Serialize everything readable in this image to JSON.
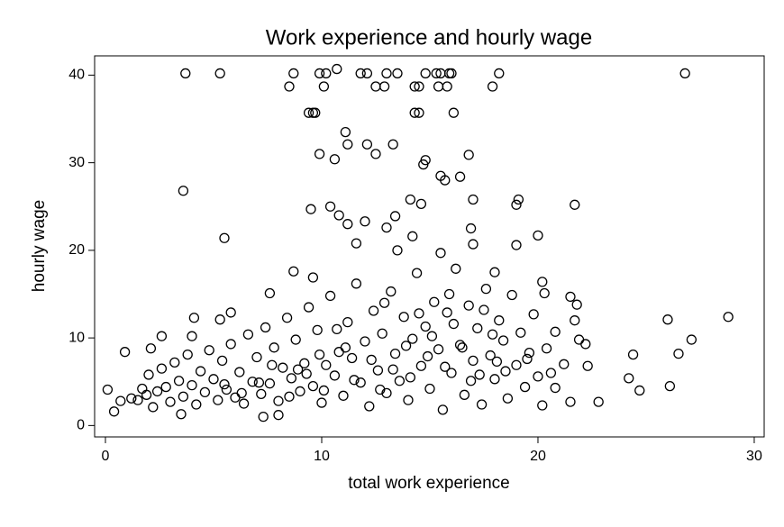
{
  "chart_data": {
    "type": "scatter",
    "title": "Work experience and hourly wage",
    "x_label": "total work experience",
    "y_label": "hourly wage",
    "xlim": [
      -0.5,
      30.46
    ],
    "ylim": [
      -1.3,
      42.2
    ],
    "xticks": [
      0,
      10,
      20,
      30
    ],
    "yticks": [
      0,
      10,
      20,
      30,
      40
    ],
    "color": "#000000",
    "x": [
      3.7,
      5.3,
      8.7,
      9.9,
      10.2,
      10.7,
      11.8,
      12.1,
      13.0,
      13.5,
      14.8,
      15.3,
      15.5,
      15.9,
      16.0,
      18.2,
      26.8,
      8.5,
      10.1,
      12.5,
      12.9,
      14.3,
      14.5,
      15.4,
      15.8,
      17.9,
      9.4,
      9.6,
      9.7,
      14.3,
      14.5,
      16.1,
      11.1,
      11.2,
      12.1,
      13.3,
      9.9,
      10.6,
      12.5,
      14.8,
      14.7,
      15.5,
      15.7,
      16.4,
      16.8,
      3.6,
      5.5,
      9.5,
      10.4,
      10.8,
      11.2,
      12.0,
      13.0,
      13.4,
      14.1,
      14.6,
      17.0,
      16.9,
      17.0,
      19.0,
      19.1,
      19.0,
      20.0,
      21.7,
      13.5,
      14.2,
      15.5,
      11.6,
      8.7,
      9.6,
      7.6,
      18.0,
      20.2,
      24.2,
      24.4,
      24.7,
      26.0,
      26.1,
      26.5,
      27.1,
      28.8,
      22.8,
      22.3,
      22.2,
      21.9,
      21.7,
      21.8,
      21.5,
      21.5,
      20.8,
      20.6,
      20.3,
      20.2,
      0.1,
      0.4,
      0.7,
      0.9,
      2.1,
      2.6,
      3.5,
      4.0,
      4.1,
      5.3,
      5.8,
      7.3,
      8.0,
      1.2,
      1.5,
      1.7,
      1.9,
      2.0,
      2.2,
      2.4,
      2.6,
      2.8,
      3.0,
      3.2,
      3.4,
      3.6,
      3.8,
      4.0,
      4.2,
      4.4,
      4.6,
      4.8,
      5.0,
      5.2,
      5.4,
      5.6,
      5.8,
      6.0,
      6.2,
      6.4,
      6.6,
      6.8,
      7.0,
      7.2,
      7.4,
      7.6,
      7.8,
      8.0,
      8.2,
      8.4,
      8.6,
      8.8,
      9.0,
      9.2,
      9.4,
      9.6,
      9.8,
      10.0,
      10.2,
      10.4,
      10.6,
      10.8,
      11.0,
      11.2,
      11.4,
      11.6,
      11.8,
      12.0,
      12.2,
      12.4,
      12.6,
      12.8,
      13.0,
      13.2,
      13.4,
      13.6,
      13.8,
      14.0,
      14.2,
      14.4,
      14.6,
      14.8,
      15.0,
      15.2,
      15.4,
      15.6,
      15.8,
      16.0,
      16.2,
      16.4,
      16.6,
      16.8,
      17.0,
      17.2,
      17.4,
      17.6,
      17.8,
      18.0,
      18.2,
      18.4,
      18.6,
      18.8,
      19.0,
      19.2,
      19.4,
      19.6,
      19.8,
      20.0,
      20.4,
      20.8,
      21.2,
      11.5,
      12.7,
      13.3,
      14.1,
      14.9,
      15.7,
      16.5,
      17.3,
      18.1,
      9.3,
      10.1,
      8.5,
      7.1,
      6.3,
      5.5,
      13.9,
      15.1,
      16.1,
      17.9,
      12.3,
      11.1,
      10.7,
      14.5,
      16.9,
      18.5,
      19.5,
      9.9,
      8.9,
      7.7,
      12.9,
      15.9,
      17.5
    ],
    "values": [
      40.2,
      40.2,
      40.2,
      40.2,
      40.2,
      40.7,
      40.2,
      40.2,
      40.2,
      40.2,
      40.2,
      40.2,
      40.2,
      40.2,
      40.2,
      40.2,
      40.2,
      38.7,
      38.7,
      38.7,
      38.7,
      38.7,
      38.7,
      38.7,
      38.7,
      38.7,
      35.7,
      35.7,
      35.7,
      35.7,
      35.7,
      35.7,
      33.5,
      32.1,
      32.1,
      32.1,
      31.0,
      30.4,
      31.0,
      30.3,
      29.8,
      28.5,
      28.0,
      28.4,
      30.9,
      26.8,
      21.4,
      24.7,
      25.0,
      24.0,
      23.0,
      23.3,
      22.6,
      23.9,
      25.8,
      25.3,
      25.8,
      22.5,
      20.7,
      25.2,
      25.8,
      20.6,
      21.7,
      25.2,
      20.0,
      21.6,
      19.7,
      20.8,
      17.6,
      16.9,
      15.1,
      17.5,
      16.4,
      5.4,
      8.1,
      4.0,
      12.1,
      4.5,
      8.2,
      9.8,
      12.4,
      2.7,
      6.8,
      9.3,
      9.8,
      12.0,
      13.8,
      14.7,
      2.7,
      10.7,
      6.0,
      15.1,
      2.3,
      4.1,
      1.6,
      2.8,
      8.4,
      8.8,
      10.2,
      1.3,
      10.2,
      12.3,
      12.1,
      12.9,
      1.0,
      1.2,
      3.1,
      2.9,
      4.2,
      3.5,
      5.8,
      2.1,
      3.9,
      6.5,
      4.4,
      2.7,
      7.2,
      5.1,
      3.3,
      8.1,
      4.6,
      2.4,
      6.2,
      3.8,
      8.6,
      5.3,
      2.9,
      7.4,
      4.1,
      9.3,
      3.2,
      6.1,
      2.5,
      10.4,
      5.0,
      7.8,
      3.6,
      11.2,
      4.8,
      8.9,
      2.8,
      6.6,
      12.3,
      5.4,
      9.8,
      3.9,
      7.1,
      13.5,
      4.5,
      10.9,
      2.6,
      6.9,
      14.8,
      5.7,
      8.4,
      3.4,
      11.8,
      7.7,
      16.2,
      4.9,
      9.6,
      2.2,
      13.1,
      6.3,
      10.5,
      3.7,
      15.3,
      8.2,
      5.1,
      12.4,
      2.9,
      9.9,
      17.4,
      6.8,
      11.3,
      4.2,
      14.1,
      8.7,
      1.8,
      12.9,
      6.0,
      17.9,
      9.2,
      3.5,
      13.7,
      7.4,
      11.1,
      2.4,
      15.6,
      8.0,
      5.3,
      12.0,
      9.7,
      3.1,
      14.9,
      6.9,
      10.6,
      4.4,
      8.3,
      12.7,
      5.6,
      8.8,
      4.3,
      7.0,
      5.2,
      4.1,
      6.4,
      5.5,
      7.9,
      6.7,
      8.9,
      5.8,
      7.3,
      5.9,
      4.0,
      3.3,
      4.9,
      3.7,
      4.7,
      9.1,
      10.2,
      11.6,
      10.4,
      7.5,
      8.9,
      11.0,
      12.8,
      5.1,
      6.2,
      7.6,
      8.1,
      6.4,
      6.9,
      14.0,
      15.0,
      13.2
    ]
  }
}
